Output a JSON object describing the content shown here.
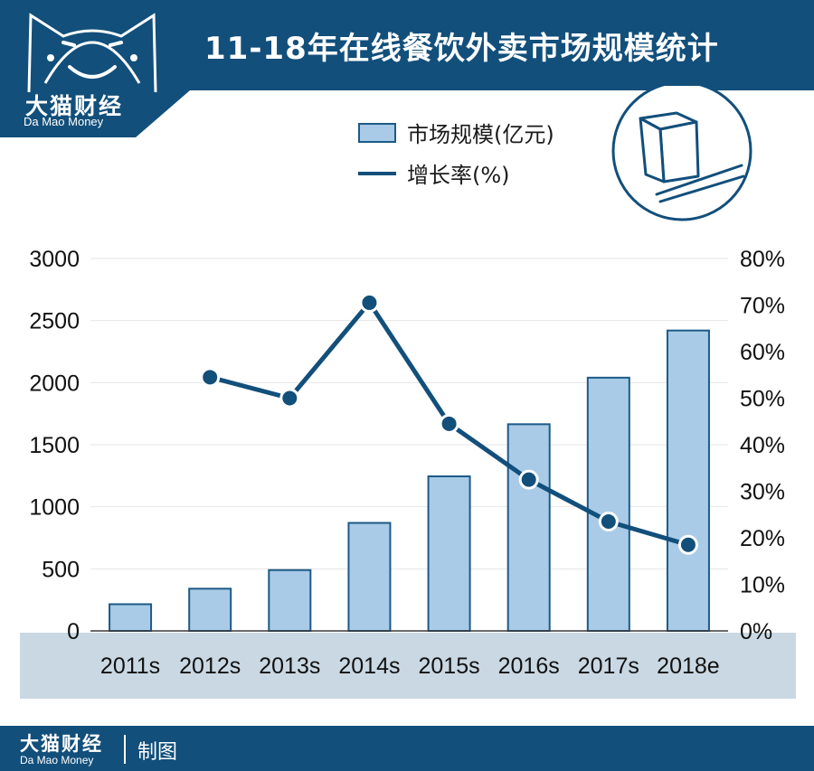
{
  "brand": {
    "name": "大猫财经",
    "name_en": "Da Mao Money"
  },
  "title": "11-18年在线餐饮外卖市场规模统计",
  "legend": {
    "bar_label": "市场规模(亿元)",
    "line_label": "增长率(%)"
  },
  "footer": {
    "brand": "大猫财经",
    "brand_en": "Da Mao Money",
    "credit": "制图"
  },
  "colors": {
    "header": "#124f7b",
    "bar_fill": "#a9cbe7",
    "bar_stroke": "#1d5a86",
    "line": "#124f7b",
    "axis_band": "#c9d8e3"
  },
  "chart_data": {
    "type": "bar",
    "categories": [
      "2011s",
      "2012s",
      "2013s",
      "2014s",
      "2015s",
      "2016s",
      "2017s",
      "2018e"
    ],
    "series": [
      {
        "name": "市场规模(亿元)",
        "type": "bar",
        "axis": "left",
        "values": [
          215,
          340,
          490,
          870,
          1245,
          1665,
          2040,
          2420
        ]
      },
      {
        "name": "增长率(%)",
        "type": "line",
        "axis": "right",
        "values": [
          null,
          54.5,
          50,
          70.5,
          44.5,
          32.5,
          23.5,
          18.5
        ]
      }
    ],
    "y_left": {
      "ylim": [
        0,
        3000
      ],
      "ticks": [
        "0",
        "500",
        "1000",
        "1500",
        "2000",
        "2500",
        "3000"
      ]
    },
    "y_right": {
      "ylim": [
        0,
        80
      ],
      "ticks": [
        "0%",
        "10%",
        "20%",
        "30%",
        "40%",
        "50%",
        "60%",
        "70%",
        "80%"
      ]
    },
    "grid": true,
    "legend_position": "top"
  }
}
